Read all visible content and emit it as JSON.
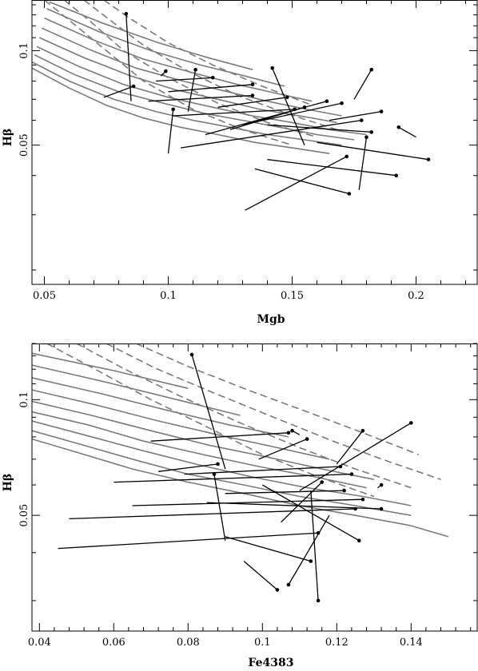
{
  "chart_data": [
    {
      "type": "line",
      "xlabel": "Mgb",
      "ylabel": "Hβ",
      "xlim": [
        0.045,
        0.225
      ],
      "ylim": [
        0.018,
        0.145
      ],
      "log_y": true,
      "xticks": [
        0.05,
        0.1,
        0.15,
        0.2
      ],
      "xtick_labels": [
        "0.05",
        "0.1",
        "0.15",
        "0.2"
      ],
      "yticks": [
        0.05,
        0.1
      ],
      "ytick_labels": [
        "0.05",
        "0.1"
      ],
      "grid_color": "#7a7a7a",
      "solid_tracks": [
        [
          [
            0.045,
            0.088
          ],
          [
            0.06,
            0.076
          ],
          [
            0.075,
            0.067
          ],
          [
            0.09,
            0.061
          ],
          [
            0.105,
            0.057
          ],
          [
            0.12,
            0.054
          ],
          [
            0.135,
            0.051
          ],
          [
            0.15,
            0.049
          ],
          [
            0.165,
            0.047
          ]
        ],
        [
          [
            0.045,
            0.092
          ],
          [
            0.06,
            0.08
          ],
          [
            0.078,
            0.07
          ],
          [
            0.095,
            0.064
          ],
          [
            0.11,
            0.06
          ],
          [
            0.125,
            0.057
          ],
          [
            0.14,
            0.054
          ],
          [
            0.155,
            0.052
          ],
          [
            0.17,
            0.05
          ]
        ],
        [
          [
            0.046,
            0.097
          ],
          [
            0.062,
            0.084
          ],
          [
            0.08,
            0.074
          ],
          [
            0.098,
            0.068
          ],
          [
            0.115,
            0.063
          ],
          [
            0.13,
            0.06
          ],
          [
            0.145,
            0.057
          ],
          [
            0.16,
            0.054
          ],
          [
            0.175,
            0.052
          ]
        ],
        [
          [
            0.047,
            0.103
          ],
          [
            0.064,
            0.089
          ],
          [
            0.082,
            0.078
          ],
          [
            0.1,
            0.071
          ],
          [
            0.118,
            0.066
          ],
          [
            0.134,
            0.062
          ],
          [
            0.15,
            0.059
          ],
          [
            0.165,
            0.056
          ],
          [
            0.18,
            0.054
          ]
        ],
        [
          [
            0.048,
            0.11
          ],
          [
            0.066,
            0.095
          ],
          [
            0.085,
            0.083
          ],
          [
            0.103,
            0.075
          ],
          [
            0.12,
            0.07
          ],
          [
            0.137,
            0.065
          ],
          [
            0.153,
            0.062
          ],
          [
            0.168,
            0.059
          ]
        ],
        [
          [
            0.049,
            0.118
          ],
          [
            0.068,
            0.101
          ],
          [
            0.087,
            0.088
          ],
          [
            0.106,
            0.08
          ],
          [
            0.124,
            0.074
          ],
          [
            0.14,
            0.069
          ],
          [
            0.156,
            0.065
          ],
          [
            0.17,
            0.062
          ]
        ],
        [
          [
            0.05,
            0.127
          ],
          [
            0.07,
            0.108
          ],
          [
            0.09,
            0.094
          ],
          [
            0.11,
            0.085
          ],
          [
            0.128,
            0.078
          ],
          [
            0.144,
            0.073
          ],
          [
            0.158,
            0.069
          ]
        ],
        [
          [
            0.051,
            0.136
          ],
          [
            0.072,
            0.115
          ],
          [
            0.093,
            0.1
          ],
          [
            0.113,
            0.09
          ],
          [
            0.131,
            0.083
          ],
          [
            0.147,
            0.077
          ]
        ],
        [
          [
            0.052,
            0.143
          ],
          [
            0.074,
            0.122
          ],
          [
            0.096,
            0.106
          ],
          [
            0.116,
            0.095
          ],
          [
            0.134,
            0.087
          ]
        ]
      ],
      "dashed_tracks": [
        [
          [
            0.05,
            0.145
          ],
          [
            0.06,
            0.125
          ],
          [
            0.075,
            0.1
          ],
          [
            0.09,
            0.08
          ],
          [
            0.11,
            0.065
          ],
          [
            0.13,
            0.056
          ],
          [
            0.15,
            0.05
          ]
        ],
        [
          [
            0.058,
            0.145
          ],
          [
            0.068,
            0.125
          ],
          [
            0.082,
            0.1
          ],
          [
            0.1,
            0.082
          ],
          [
            0.12,
            0.068
          ],
          [
            0.14,
            0.059
          ],
          [
            0.16,
            0.053
          ]
        ],
        [
          [
            0.066,
            0.145
          ],
          [
            0.076,
            0.126
          ],
          [
            0.09,
            0.104
          ],
          [
            0.108,
            0.086
          ],
          [
            0.128,
            0.072
          ],
          [
            0.148,
            0.063
          ],
          [
            0.168,
            0.056
          ]
        ],
        [
          [
            0.074,
            0.145
          ],
          [
            0.085,
            0.126
          ],
          [
            0.1,
            0.106
          ],
          [
            0.118,
            0.09
          ],
          [
            0.138,
            0.077
          ],
          [
            0.158,
            0.067
          ]
        ]
      ],
      "vectors": [
        [
          [
            0.083,
            0.131
          ],
          [
            0.085,
            0.069
          ]
        ],
        [
          [
            0.086,
            0.077
          ],
          [
            0.074,
            0.071
          ]
        ],
        [
          [
            0.099,
            0.086
          ],
          [
            0.097,
            0.083
          ]
        ],
        [
          [
            0.111,
            0.087
          ],
          [
            0.108,
            0.064
          ]
        ],
        [
          [
            0.118,
            0.082
          ],
          [
            0.095,
            0.08
          ]
        ],
        [
          [
            0.134,
            0.078
          ],
          [
            0.1,
            0.074
          ]
        ],
        [
          [
            0.134,
            0.072
          ],
          [
            0.092,
            0.069
          ]
        ],
        [
          [
            0.148,
            0.071
          ],
          [
            0.12,
            0.066
          ]
        ],
        [
          [
            0.151,
            0.065
          ],
          [
            0.102,
            0.062
          ]
        ],
        [
          [
            0.142,
            0.088
          ],
          [
            0.155,
            0.05
          ]
        ],
        [
          [
            0.182,
            0.087
          ],
          [
            0.175,
            0.07
          ]
        ],
        [
          [
            0.17,
            0.068
          ],
          [
            0.13,
            0.058
          ]
        ],
        [
          [
            0.186,
            0.064
          ],
          [
            0.165,
            0.06
          ]
        ],
        [
          [
            0.193,
            0.057
          ],
          [
            0.2,
            0.053
          ]
        ],
        [
          [
            0.205,
            0.045
          ],
          [
            0.16,
            0.051
          ]
        ],
        [
          [
            0.192,
            0.04
          ],
          [
            0.14,
            0.045
          ]
        ],
        [
          [
            0.173,
            0.035
          ],
          [
            0.135,
            0.042
          ]
        ],
        [
          [
            0.172,
            0.046
          ],
          [
            0.131,
            0.031
          ]
        ],
        [
          [
            0.18,
            0.053
          ],
          [
            0.177,
            0.036
          ]
        ],
        [
          [
            0.102,
            0.065
          ],
          [
            0.1,
            0.047
          ]
        ],
        [
          [
            0.178,
            0.06
          ],
          [
            0.105,
            0.049
          ]
        ],
        [
          [
            0.164,
            0.069
          ],
          [
            0.115,
            0.054
          ]
        ],
        [
          [
            0.155,
            0.066
          ],
          [
            0.125,
            0.056
          ]
        ],
        [
          [
            0.182,
            0.055
          ],
          [
            0.14,
            0.058
          ]
        ]
      ]
    },
    {
      "type": "line",
      "xlabel": "Fe4383",
      "ylabel": "Hβ",
      "xlim": [
        0.038,
        0.158
      ],
      "ylim": [
        0.025,
        0.14
      ],
      "log_y": true,
      "xticks": [
        0.04,
        0.06,
        0.08,
        0.1,
        0.12,
        0.14
      ],
      "xtick_labels": [
        "0.04",
        "0.06",
        "0.08",
        "0.1",
        "0.12",
        "0.14"
      ],
      "yticks": [
        0.05,
        0.1
      ],
      "ytick_labels": [
        "0.05",
        "0.1"
      ],
      "grid_color": "#7a7a7a",
      "solid_tracks": [
        [
          [
            0.038,
            0.079
          ],
          [
            0.05,
            0.073
          ],
          [
            0.065,
            0.066
          ],
          [
            0.08,
            0.061
          ],
          [
            0.095,
            0.057
          ],
          [
            0.11,
            0.053
          ],
          [
            0.125,
            0.05
          ],
          [
            0.14,
            0.047
          ],
          [
            0.15,
            0.044
          ]
        ],
        [
          [
            0.038,
            0.083
          ],
          [
            0.05,
            0.077
          ],
          [
            0.065,
            0.07
          ],
          [
            0.08,
            0.064
          ],
          [
            0.095,
            0.06
          ],
          [
            0.11,
            0.056
          ],
          [
            0.125,
            0.053
          ],
          [
            0.14,
            0.05
          ]
        ],
        [
          [
            0.038,
            0.088
          ],
          [
            0.052,
            0.081
          ],
          [
            0.067,
            0.074
          ],
          [
            0.082,
            0.068
          ],
          [
            0.097,
            0.063
          ],
          [
            0.112,
            0.059
          ],
          [
            0.127,
            0.056
          ],
          [
            0.14,
            0.053
          ]
        ],
        [
          [
            0.038,
            0.093
          ],
          [
            0.053,
            0.086
          ],
          [
            0.068,
            0.078
          ],
          [
            0.084,
            0.072
          ],
          [
            0.099,
            0.067
          ],
          [
            0.114,
            0.063
          ],
          [
            0.128,
            0.059
          ]
        ],
        [
          [
            0.038,
            0.099
          ],
          [
            0.054,
            0.091
          ],
          [
            0.07,
            0.083
          ],
          [
            0.086,
            0.076
          ],
          [
            0.101,
            0.071
          ],
          [
            0.116,
            0.066
          ],
          [
            0.13,
            0.062
          ]
        ],
        [
          [
            0.038,
            0.106
          ],
          [
            0.055,
            0.097
          ],
          [
            0.072,
            0.088
          ],
          [
            0.088,
            0.081
          ],
          [
            0.104,
            0.075
          ],
          [
            0.118,
            0.07
          ]
        ],
        [
          [
            0.038,
            0.114
          ],
          [
            0.056,
            0.104
          ],
          [
            0.074,
            0.094
          ],
          [
            0.091,
            0.086
          ],
          [
            0.107,
            0.08
          ]
        ],
        [
          [
            0.038,
            0.123
          ],
          [
            0.058,
            0.111
          ],
          [
            0.077,
            0.1
          ],
          [
            0.094,
            0.091
          ]
        ],
        [
          [
            0.038,
            0.132
          ],
          [
            0.06,
            0.119
          ],
          [
            0.08,
            0.107
          ]
        ]
      ],
      "dashed_tracks": [
        [
          [
            0.042,
            0.14
          ],
          [
            0.055,
            0.12
          ],
          [
            0.07,
            0.1
          ],
          [
            0.085,
            0.085
          ],
          [
            0.1,
            0.072
          ],
          [
            0.115,
            0.063
          ],
          [
            0.13,
            0.056
          ]
        ],
        [
          [
            0.05,
            0.14
          ],
          [
            0.063,
            0.12
          ],
          [
            0.078,
            0.102
          ],
          [
            0.094,
            0.087
          ],
          [
            0.11,
            0.075
          ],
          [
            0.125,
            0.066
          ],
          [
            0.14,
            0.059
          ]
        ],
        [
          [
            0.058,
            0.14
          ],
          [
            0.071,
            0.121
          ],
          [
            0.087,
            0.104
          ],
          [
            0.103,
            0.09
          ],
          [
            0.119,
            0.078
          ],
          [
            0.134,
            0.069
          ],
          [
            0.148,
            0.062
          ]
        ],
        [
          [
            0.066,
            0.14
          ],
          [
            0.08,
            0.122
          ],
          [
            0.096,
            0.106
          ],
          [
            0.112,
            0.093
          ],
          [
            0.127,
            0.082
          ],
          [
            0.142,
            0.072
          ]
        ]
      ],
      "vectors": [
        [
          [
            0.081,
            0.131
          ],
          [
            0.09,
            0.066
          ]
        ],
        [
          [
            0.087,
            0.064
          ],
          [
            0.09,
            0.043
          ]
        ],
        [
          [
            0.088,
            0.068
          ],
          [
            0.072,
            0.065
          ]
        ],
        [
          [
            0.107,
            0.082
          ],
          [
            0.07,
            0.078
          ]
        ],
        [
          [
            0.108,
            0.083
          ],
          [
            0.11,
            0.081
          ]
        ],
        [
          [
            0.112,
            0.079
          ],
          [
            0.099,
            0.07
          ]
        ],
        [
          [
            0.127,
            0.083
          ],
          [
            0.12,
            0.068
          ]
        ],
        [
          [
            0.121,
            0.067
          ],
          [
            0.079,
            0.064
          ]
        ],
        [
          [
            0.124,
            0.064
          ],
          [
            0.06,
            0.061
          ]
        ],
        [
          [
            0.14,
            0.087
          ],
          [
            0.11,
            0.058
          ]
        ],
        [
          [
            0.132,
            0.06
          ],
          [
            0.131,
            0.059
          ]
        ],
        [
          [
            0.127,
            0.055
          ],
          [
            0.065,
            0.053
          ]
        ],
        [
          [
            0.125,
            0.052
          ],
          [
            0.048,
            0.049
          ]
        ],
        [
          [
            0.115,
            0.045
          ],
          [
            0.045,
            0.041
          ]
        ],
        [
          [
            0.113,
            0.038
          ],
          [
            0.09,
            0.044
          ]
        ],
        [
          [
            0.104,
            0.032
          ],
          [
            0.095,
            0.038
          ]
        ],
        [
          [
            0.107,
            0.033
          ],
          [
            0.118,
            0.05
          ]
        ],
        [
          [
            0.115,
            0.03
          ],
          [
            0.113,
            0.058
          ]
        ],
        [
          [
            0.126,
            0.043
          ],
          [
            0.1,
            0.06
          ]
        ],
        [
          [
            0.116,
            0.061
          ],
          [
            0.105,
            0.048
          ]
        ],
        [
          [
            0.122,
            0.058
          ],
          [
            0.09,
            0.057
          ]
        ],
        [
          [
            0.132,
            0.052
          ],
          [
            0.085,
            0.054
          ]
        ]
      ]
    }
  ]
}
